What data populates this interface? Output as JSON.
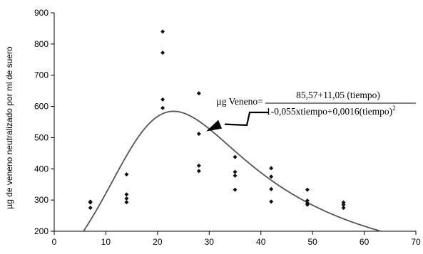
{
  "chart_data": {
    "type": "scatter",
    "xlabel": "",
    "ylabel": "µg de veneno neutralizado por ml de suero",
    "xlim": [
      0,
      70
    ],
    "ylim": [
      200,
      900
    ],
    "xticks": [
      0,
      10,
      20,
      30,
      40,
      50,
      60,
      70
    ],
    "yticks": [
      200,
      300,
      400,
      500,
      600,
      700,
      800,
      900
    ],
    "grid": false,
    "series": [
      {
        "name": "",
        "type": "scatter",
        "points": [
          {
            "x": 7,
            "y": 295
          },
          {
            "x": 7,
            "y": 292
          },
          {
            "x": 7,
            "y": 275
          },
          {
            "x": 14,
            "y": 382
          },
          {
            "x": 14,
            "y": 318
          },
          {
            "x": 14,
            "y": 305
          },
          {
            "x": 14,
            "y": 293
          },
          {
            "x": 21,
            "y": 840
          },
          {
            "x": 21,
            "y": 772
          },
          {
            "x": 21,
            "y": 622
          },
          {
            "x": 21,
            "y": 595
          },
          {
            "x": 28,
            "y": 642
          },
          {
            "x": 28,
            "y": 512
          },
          {
            "x": 28,
            "y": 410
          },
          {
            "x": 28,
            "y": 393
          },
          {
            "x": 35,
            "y": 438
          },
          {
            "x": 35,
            "y": 390
          },
          {
            "x": 35,
            "y": 378
          },
          {
            "x": 35,
            "y": 333
          },
          {
            "x": 42,
            "y": 402
          },
          {
            "x": 42,
            "y": 375
          },
          {
            "x": 42,
            "y": 335
          },
          {
            "x": 42,
            "y": 295
          },
          {
            "x": 49,
            "y": 333
          },
          {
            "x": 49,
            "y": 298
          },
          {
            "x": 49,
            "y": 290
          },
          {
            "x": 49,
            "y": 285
          },
          {
            "x": 56,
            "y": 292
          },
          {
            "x": 56,
            "y": 285
          },
          {
            "x": 56,
            "y": 275
          }
        ]
      },
      {
        "name": "",
        "type": "line",
        "model": {
          "a": 85.57,
          "b": 11.05,
          "c": 0.055,
          "d": 0.0016
        },
        "x_range": [
          0,
          70
        ]
      }
    ],
    "annotation": {
      "label": "µg Veneno=",
      "numerator": "85,57+11,05 (tiempo)",
      "denominator": "1-0,055xtiempo+0,0016(tiempo)",
      "exponent": "2",
      "points_to": {
        "x": 29,
        "y": 520
      }
    }
  }
}
